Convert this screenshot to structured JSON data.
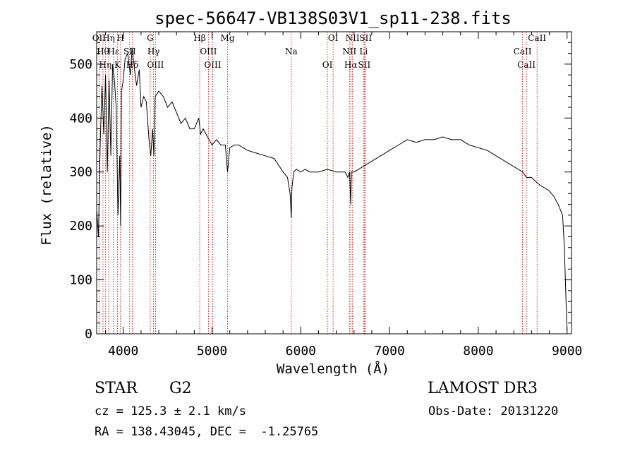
{
  "chart_data": {
    "type": "line",
    "title": "spec-56647-VB138S03V1_sp11-238.fits",
    "xlabel": "Wavelength (Å)",
    "ylabel": "Flux (relative)",
    "xlim": [
      3700,
      9050
    ],
    "ylim": [
      0,
      560
    ],
    "xticks": [
      4000,
      5000,
      6000,
      7000,
      8000,
      9000
    ],
    "yticks": [
      0,
      100,
      200,
      300,
      400,
      500
    ],
    "series": [
      {
        "name": "flux",
        "x": [
          3700,
          3720,
          3740,
          3760,
          3780,
          3800,
          3820,
          3840,
          3860,
          3880,
          3900,
          3920,
          3940,
          3960,
          3970,
          3980,
          4000,
          4020,
          4050,
          4080,
          4100,
          4120,
          4150,
          4180,
          4200,
          4230,
          4260,
          4290,
          4310,
          4330,
          4345,
          4360,
          4400,
          4450,
          4500,
          4550,
          4600,
          4650,
          4700,
          4750,
          4800,
          4850,
          4861,
          4870,
          4900,
          4950,
          5000,
          5050,
          5100,
          5150,
          5175,
          5200,
          5250,
          5300,
          5400,
          5500,
          5600,
          5700,
          5800,
          5850,
          5880,
          5893,
          5900,
          5920,
          5950,
          6000,
          6050,
          6100,
          6200,
          6300,
          6400,
          6500,
          6530,
          6550,
          6563,
          6570,
          6600,
          6650,
          6700,
          6800,
          6900,
          7000,
          7100,
          7200,
          7300,
          7400,
          7500,
          7600,
          7700,
          7800,
          7900,
          8000,
          8100,
          8200,
          8300,
          8400,
          8500,
          8542,
          8600,
          8662,
          8700,
          8750,
          8800,
          8850,
          8900,
          8950,
          8970,
          8990,
          9000
        ],
        "y": [
          230,
          180,
          350,
          460,
          370,
          480,
          300,
          470,
          330,
          500,
          470,
          420,
          220,
          330,
          200,
          450,
          470,
          510,
          520,
          480,
          530,
          500,
          460,
          490,
          420,
          440,
          430,
          360,
          330,
          380,
          330,
          440,
          450,
          440,
          420,
          430,
          410,
          390,
          400,
          380,
          380,
          400,
          385,
          370,
          380,
          365,
          350,
          360,
          350,
          350,
          300,
          345,
          350,
          350,
          340,
          335,
          330,
          325,
          300,
          290,
          260,
          215,
          270,
          300,
          305,
          300,
          305,
          300,
          300,
          305,
          300,
          300,
          290,
          300,
          240,
          300,
          300,
          305,
          310,
          320,
          330,
          340,
          350,
          360,
          355,
          360,
          360,
          365,
          360,
          360,
          350,
          345,
          340,
          330,
          320,
          310,
          300,
          290,
          290,
          280,
          275,
          270,
          265,
          255,
          240,
          220,
          160,
          50,
          5
        ]
      }
    ],
    "line_markers": [
      {
        "x": 3727,
        "top": "OII"
      },
      {
        "x": 3771,
        "top": "Hθ"
      },
      {
        "x": 3798,
        "top": "Hη"
      },
      {
        "x": 3835,
        "top": "Hη"
      },
      {
        "x": 3889,
        "top": "Hε"
      },
      {
        "x": 3934,
        "top": "K"
      },
      {
        "x": 3968,
        "top": "H"
      },
      {
        "x": 4072,
        "top": "SII"
      },
      {
        "x": 4102,
        "top": "Hδ"
      },
      {
        "x": 4304,
        "top": "G"
      },
      {
        "x": 4341,
        "top": "Hγ"
      },
      {
        "x": 4363,
        "top": "OIII"
      },
      {
        "x": 4861,
        "top": "Hβ"
      },
      {
        "x": 4959,
        "top": "OIII"
      },
      {
        "x": 5007,
        "top": "OIII"
      },
      {
        "x": 5175,
        "top": "Mg"
      },
      {
        "x": 5893,
        "top": "Na"
      },
      {
        "x": 6300,
        "top": "OI"
      },
      {
        "x": 6364,
        "top": "OI"
      },
      {
        "x": 6548,
        "top": "NII"
      },
      {
        "x": 6563,
        "top": "Hα"
      },
      {
        "x": 6583,
        "top": "NII"
      },
      {
        "x": 6707,
        "top": "Li"
      },
      {
        "x": 6716,
        "top": "SII"
      },
      {
        "x": 6731,
        "top": "SII"
      },
      {
        "x": 8498,
        "top": "CaII"
      },
      {
        "x": 8542,
        "top": "CaII"
      },
      {
        "x": 8662,
        "top": "CaII"
      }
    ],
    "line_color": "#cc0000"
  },
  "info": {
    "class": "STAR",
    "subclass": "G2",
    "survey": "LAMOST DR3",
    "redshift": "cz = 125.3 ± 2.1 km/s",
    "obsdate": "Obs-Date: 20131220",
    "coords": "RA = 138.43045, DEC =  -1.25765"
  }
}
